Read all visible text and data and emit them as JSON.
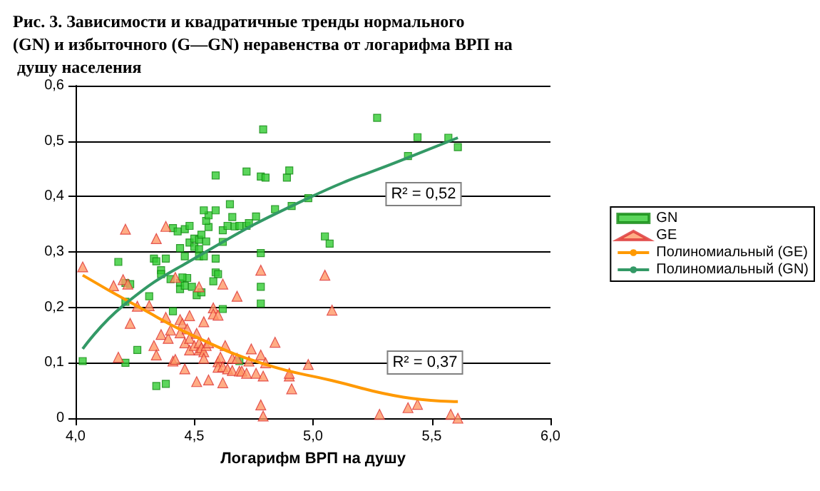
{
  "chart_data": {
    "type": "scatter",
    "title": "Рис. 3. Зависимости и квадратичные тренды нормального (GN) и избыточного (G—GN) неравенства от логарифма ВРП на душу населения",
    "xlabel": "Логарифм ВРП на душу",
    "xlim": [
      4,
      6
    ],
    "xticks": [
      {
        "value": 4,
        "label": "4,0"
      },
      {
        "value": 4.5,
        "label": "4,5"
      },
      {
        "value": 5,
        "label": "5,0"
      },
      {
        "value": 5.5,
        "label": "5,5"
      },
      {
        "value": 6,
        "label": "6,0"
      }
    ],
    "ylim": [
      0,
      0.6
    ],
    "yticks": [
      {
        "value": 0,
        "label": "0"
      },
      {
        "value": 0.1,
        "label": "0,1"
      },
      {
        "value": 0.2,
        "label": "0,2"
      },
      {
        "value": 0.3,
        "label": "0,3"
      },
      {
        "value": 0.4,
        "label": "0,4"
      },
      {
        "value": 0.5,
        "label": "0,5"
      },
      {
        "value": 0.6,
        "label": "0,6"
      }
    ],
    "grid": "y",
    "legend": "right",
    "annotations": [
      "R² = 0,52",
      "R² = 0,37"
    ],
    "series": [
      {
        "name": "GN",
        "marker": "square",
        "color": "#33cc33",
        "x": [
          4.03,
          4.21,
          4.18,
          4.21,
          4.23,
          4.21,
          4.26,
          4.31,
          4.33,
          4.34,
          4.36,
          4.36,
          4.38,
          4.34,
          4.38,
          4.4,
          4.41,
          4.41,
          4.43,
          4.44,
          4.46,
          4.48,
          4.46,
          4.44,
          4.44,
          4.46,
          4.47,
          4.49,
          4.45,
          4.48,
          4.5,
          4.5,
          4.52,
          4.52,
          4.53,
          4.52,
          4.51,
          4.53,
          4.54,
          4.56,
          4.55,
          4.56,
          4.54,
          4.55,
          4.59,
          4.59,
          4.59,
          4.59,
          4.6,
          4.58,
          4.62,
          4.62,
          4.64,
          4.65,
          4.66,
          4.67,
          4.62,
          4.69,
          4.69,
          4.72,
          4.72,
          4.76,
          4.73,
          4.78,
          4.78,
          4.78,
          4.78,
          4.8,
          4.79,
          4.84,
          4.89,
          4.9,
          4.91,
          4.98,
          5.05,
          5.07,
          5.27,
          5.44,
          5.4,
          5.57,
          5.61
        ],
        "values": [
          0.103,
          0.1,
          0.282,
          0.244,
          0.242,
          0.21,
          0.123,
          0.22,
          0.288,
          0.283,
          0.267,
          0.26,
          0.288,
          0.058,
          0.062,
          0.251,
          0.193,
          0.343,
          0.337,
          0.307,
          0.341,
          0.347,
          0.292,
          0.244,
          0.233,
          0.239,
          0.253,
          0.237,
          0.254,
          0.317,
          0.324,
          0.309,
          0.322,
          0.305,
          0.331,
          0.292,
          0.222,
          0.227,
          0.292,
          0.345,
          0.356,
          0.366,
          0.375,
          0.319,
          0.375,
          0.438,
          0.288,
          0.263,
          0.26,
          0.247,
          0.339,
          0.318,
          0.347,
          0.386,
          0.363,
          0.346,
          0.197,
          0.103,
          0.347,
          0.347,
          0.445,
          0.364,
          0.352,
          0.298,
          0.237,
          0.207,
          0.436,
          0.434,
          0.521,
          0.377,
          0.434,
          0.447,
          0.383,
          0.397,
          0.328,
          0.315,
          0.542,
          0.507,
          0.473,
          0.506,
          0.489
        ]
      },
      {
        "name": "GE",
        "marker": "triangle",
        "color": "#ff9966",
        "x": [
          4.03,
          4.16,
          4.2,
          4.22,
          4.21,
          4.23,
          4.18,
          4.26,
          4.31,
          4.34,
          4.38,
          4.42,
          4.33,
          4.34,
          4.36,
          4.38,
          4.39,
          4.4,
          4.41,
          4.42,
          4.44,
          4.44,
          4.45,
          4.46,
          4.46,
          4.48,
          4.47,
          4.48,
          4.48,
          4.5,
          4.51,
          4.52,
          4.52,
          4.52,
          4.53,
          4.54,
          4.54,
          4.54,
          4.55,
          4.56,
          4.51,
          4.56,
          4.58,
          4.58,
          4.6,
          4.6,
          4.6,
          4.61,
          4.62,
          4.62,
          4.62,
          4.63,
          4.64,
          4.66,
          4.66,
          4.68,
          4.68,
          4.69,
          4.7,
          4.72,
          4.73,
          4.74,
          4.76,
          4.78,
          4.79,
          4.8,
          4.78,
          4.78,
          4.79,
          4.84,
          4.9,
          4.91,
          4.9,
          4.98,
          5.05,
          5.08,
          5.28,
          5.4,
          5.44,
          5.58,
          5.61
        ],
        "values": [
          0.273,
          0.239,
          0.25,
          0.242,
          0.341,
          0.171,
          0.11,
          0.202,
          0.203,
          0.324,
          0.346,
          0.254,
          0.131,
          0.114,
          0.151,
          0.182,
          0.144,
          0.159,
          0.103,
          0.106,
          0.178,
          0.154,
          0.171,
          0.136,
          0.089,
          0.185,
          0.161,
          0.144,
          0.123,
          0.131,
          0.153,
          0.123,
          0.237,
          0.136,
          0.127,
          0.12,
          0.174,
          0.108,
          0.131,
          0.136,
          0.066,
          0.069,
          0.199,
          0.188,
          0.186,
          0.102,
          0.092,
          0.11,
          0.242,
          0.093,
          0.064,
          0.131,
          0.089,
          0.108,
          0.086,
          0.22,
          0.108,
          0.085,
          0.085,
          0.081,
          0.103,
          0.125,
          0.081,
          0.114,
          0.076,
          0.1,
          0.267,
          0.024,
          0.004,
          0.137,
          0.076,
          0.053,
          0.081,
          0.097,
          0.258,
          0.195,
          0.007,
          0.019,
          0.025,
          0.007,
          0.0
        ]
      },
      {
        "name": "Полиномиальный (GE)",
        "type": "line",
        "marker": "none",
        "color": "#ff9900",
        "x": [
          4.03,
          4.26,
          4.52,
          4.8,
          5.08,
          5.38,
          5.61
        ],
        "values": [
          0.258,
          0.202,
          0.144,
          0.097,
          0.068,
          0.038,
          0.03
        ]
      },
      {
        "name": "Полиномиальный (GN)",
        "type": "line",
        "marker": "none",
        "color": "#339966",
        "x": [
          4.03,
          4.2,
          4.5,
          4.98,
          5.4,
          5.61
        ],
        "values": [
          0.125,
          0.203,
          0.288,
          0.397,
          0.47,
          0.506
        ]
      }
    ]
  }
}
